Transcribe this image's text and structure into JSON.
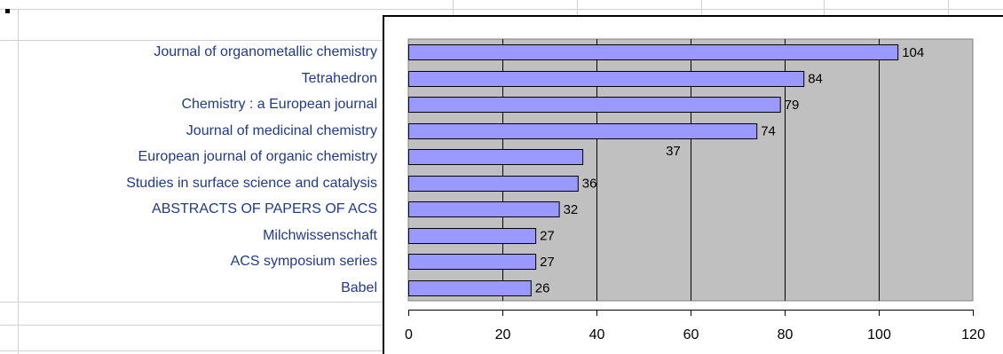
{
  "chart_data": {
    "type": "bar",
    "orientation": "horizontal",
    "categories": [
      "Journal of organometallic chemistry",
      "Tetrahedron",
      "Chemistry : a European journal",
      "Journal of medicinal chemistry",
      "European journal of organic chemistry",
      "Studies in surface science and catalysis",
      "ABSTRACTS OF PAPERS OF ACS",
      "Milchwissenschaft",
      "ACS symposium series",
      "Babel"
    ],
    "values": [
      104,
      84,
      79,
      74,
      37,
      36,
      32,
      27,
      27,
      26
    ],
    "data_labels": [
      "104",
      "84",
      "79",
      "74",
      "37",
      "36",
      "32",
      "27",
      "27",
      "26"
    ],
    "xlim": [
      0,
      120
    ],
    "x_ticks": [
      "0",
      "20",
      "40",
      "60",
      "80",
      "100",
      "120"
    ],
    "title": "",
    "xlabel": "",
    "ylabel": "",
    "grid": true,
    "legend": "none",
    "colors": {
      "bar_fill": "#9999ff",
      "bar_stroke": "#000000",
      "plot_background": "#c0c0c0",
      "gridline": "#000000",
      "label_text": "#1f3a8a"
    }
  }
}
